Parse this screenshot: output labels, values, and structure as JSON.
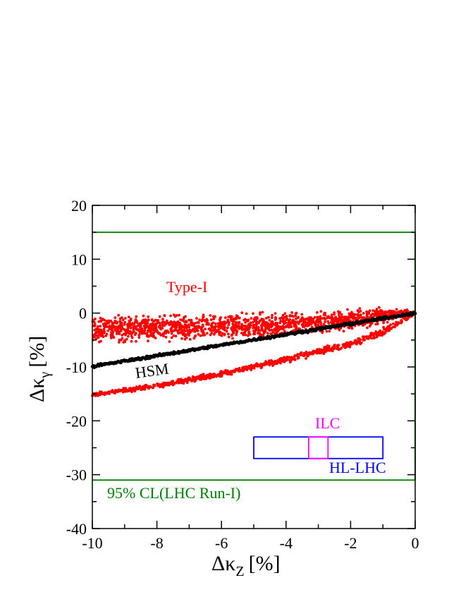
{
  "chart_data": {
    "type": "scatter",
    "xlabel": "Δκ",
    "xlabel_sub": "Z",
    "xlabel_unit": "[%]",
    "ylabel": "Δκ",
    "ylabel_sub": "γ",
    "ylabel_unit": "[%]",
    "xlim": [
      -10,
      0
    ],
    "ylim": [
      -40,
      20
    ],
    "x_ticks": [
      "-10",
      "-8",
      "-6",
      "-4",
      "-2",
      "0"
    ],
    "y_ticks": [
      "20",
      "10",
      "0",
      "-10",
      "-20",
      "-30",
      "-40"
    ],
    "grid": false,
    "colors": {
      "type1": "#ff0000",
      "hsm": "#000000",
      "lhc_limit": "#008000",
      "ilc": "#ff00ff",
      "hl_lhc": "#0000ff"
    },
    "annotations": {
      "type1": "Type-I",
      "hsm": "HSM",
      "lhc_limit": "95% CL(LHC Run-I)",
      "ilc": "ILC",
      "hl_lhc": "HL-LHC"
    },
    "lhc_limit_lines": [
      15,
      -31
    ],
    "hl_lhc_box": {
      "x": [
        -5,
        -1
      ],
      "y": [
        -27,
        -23
      ]
    },
    "ilc_box": {
      "x": [
        -3.3,
        -2.7
      ],
      "y": [
        -27,
        -23
      ]
    },
    "hsm_band": {
      "x": [
        -10,
        0
      ],
      "y_at_x_min": -9.9,
      "y_at_x_max": 0
    },
    "type1_upper_band": {
      "x": [
        -10,
        -8,
        -6,
        -4,
        -2,
        -1,
        0
      ],
      "y_center": [
        -3.0,
        -2.8,
        -2.6,
        -2.2,
        -1.2,
        -0.4,
        0
      ],
      "y_spread": [
        3.5,
        3.2,
        3.0,
        2.8,
        2.5,
        2.0,
        0.5
      ]
    },
    "type1_lower_band": {
      "x": [
        -10,
        -8,
        -6,
        -4,
        -2,
        -1,
        0
      ],
      "y_center": [
        -15.2,
        -13.5,
        -11.3,
        -8.6,
        -5.7,
        -3.5,
        0
      ],
      "y_spread": [
        0.5,
        0.6,
        0.7,
        0.8,
        0.9,
        1.0,
        0.3
      ]
    }
  }
}
